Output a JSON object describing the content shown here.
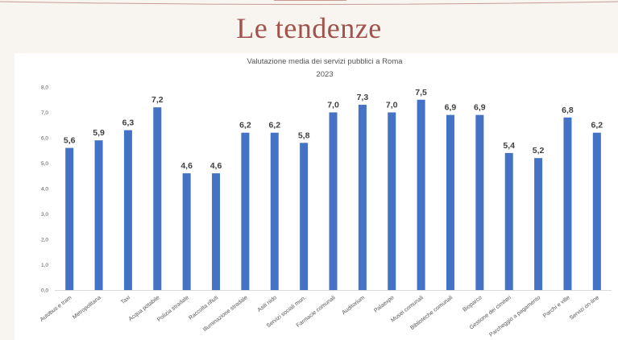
{
  "slide": {
    "title": "Le tendenze"
  },
  "chart_data": {
    "type": "bar",
    "title": "Valutazione media dei servizi pubblici a Roma",
    "subtitle": "2023",
    "categories": [
      "Autobus e tram",
      "Metropolitana",
      "Taxi",
      "Acqua potabile",
      "Polizia stradale",
      "Raccolta rifiuti",
      "Illuminazione stradale",
      "Asili nido",
      "Servizi sociali mun.",
      "Farmacie comunali",
      "Auditorium",
      "Palaexpo",
      "Musei comunali",
      "Biblioteche comunali",
      "Bioparco",
      "Gestione dei cimiteri",
      "Parcheggio a pagamento",
      "Parchi e ville",
      "Servizi on-line"
    ],
    "values": [
      5.6,
      5.9,
      6.3,
      7.2,
      4.6,
      4.6,
      6.2,
      6.2,
      5.8,
      7.0,
      7.3,
      7.0,
      7.5,
      6.9,
      6.9,
      5.4,
      5.2,
      6.8,
      6.2
    ],
    "data_labels": [
      "5,6",
      "5,9",
      "6,3",
      "7,2",
      "4,6",
      "4,6",
      "6,2",
      "6,2",
      "5,8",
      "7,0",
      "7,3",
      "7,0",
      "7,5",
      "6,9",
      "6,9",
      "5,4",
      "5,2",
      "6,8",
      "6,2"
    ],
    "yticks": [
      "0,0",
      "1,0",
      "2,0",
      "3,0",
      "4,0",
      "5,0",
      "6,0",
      "7,0",
      "8,0"
    ],
    "ylim": [
      0,
      8
    ],
    "grid": false,
    "legend": "none",
    "bar_color": "#4472c4",
    "xlabel": "",
    "ylabel": ""
  }
}
